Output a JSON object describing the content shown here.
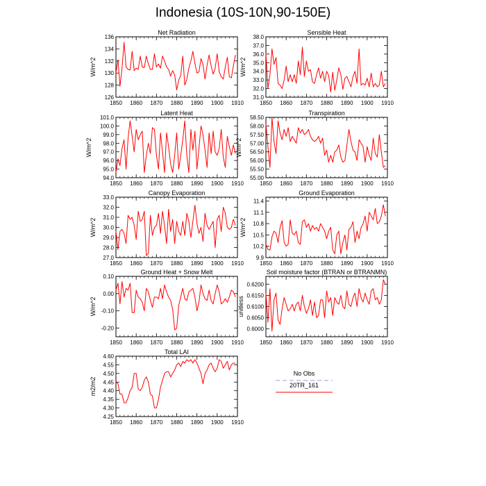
{
  "figure": {
    "title": "Indonesia (10S-10N,90-150E)"
  },
  "chart_data": [
    {
      "type": "line",
      "title": "Net Radiation",
      "ylabel": "W/m^2",
      "xlim": [
        1850,
        1910
      ],
      "ylim": [
        126,
        136
      ],
      "xticks": [
        1850,
        1860,
        1870,
        1880,
        1890,
        1900,
        1910
      ],
      "yticks": [
        126,
        128,
        130,
        132,
        134,
        136
      ],
      "ytick_labels": [
        "126",
        "128",
        "130",
        "132",
        "134",
        "136"
      ],
      "series": [
        {
          "name": "20TR_161",
          "color": "#ff0000",
          "x_start": 1850,
          "values": [
            130.0,
            132.2,
            127.8,
            130.8,
            135.1,
            131.0,
            130.6,
            130.5,
            133.6,
            130.4,
            130.8,
            130.6,
            132.8,
            131.0,
            130.9,
            132.8,
            131.5,
            130.6,
            130.6,
            133.2,
            131.0,
            131.5,
            130.8,
            132.8,
            132.0,
            131.0,
            130.6,
            129.5,
            130.4,
            129.7,
            127.2,
            128.8,
            129.6,
            132.8,
            128.0,
            129.0,
            130.8,
            132.0,
            133.6,
            131.6,
            130.0,
            130.2,
            132.4,
            131.4,
            129.0,
            131.3,
            133.0,
            131.2,
            129.8,
            130.8,
            133.2,
            130.2,
            129.4,
            129.0,
            131.0,
            132.6,
            129.4,
            129.2,
            131.2,
            133.0
          ]
        }
      ]
    },
    {
      "type": "line",
      "title": "Sensible Heat",
      "ylabel": "W/m^2",
      "xlim": [
        1850,
        1910
      ],
      "ylim": [
        31,
        38
      ],
      "xticks": [
        1850,
        1860,
        1870,
        1880,
        1890,
        1900,
        1910
      ],
      "yticks": [
        31,
        32,
        33,
        34,
        35,
        36,
        37,
        38
      ],
      "ytick_labels": [
        "31.0",
        "32.0",
        "33.0",
        "34.0",
        "35.0",
        "36.0",
        "37.0",
        "38.0"
      ],
      "series": [
        {
          "name": "20TR_161",
          "color": "#ff0000",
          "x_start": 1850,
          "values": [
            36.1,
            32.0,
            33.6,
            36.6,
            34.8,
            35.6,
            32.6,
            32.4,
            32.0,
            33.0,
            34.6,
            32.8,
            33.6,
            32.8,
            33.6,
            32.6,
            35.2,
            33.6,
            36.8,
            33.4,
            35.2,
            34.0,
            34.2,
            32.8,
            32.6,
            33.6,
            34.4,
            33.2,
            34.0,
            32.8,
            34.0,
            33.5,
            31.6,
            33.9,
            31.8,
            33.0,
            34.4,
            33.6,
            31.9,
            33.2,
            33.4,
            32.8,
            32.2,
            33.4,
            34.0,
            32.6,
            36.6,
            32.4,
            32.6,
            32.4,
            33.2,
            32.2,
            33.8,
            32.2,
            32.6,
            32.2,
            32.4,
            34.0,
            32.2,
            32.6
          ]
        }
      ]
    },
    {
      "type": "line",
      "title": "Latent Heat",
      "ylabel": "W/m^2",
      "xlim": [
        1850,
        1910
      ],
      "ylim": [
        94,
        101
      ],
      "xticks": [
        1850,
        1860,
        1870,
        1880,
        1890,
        1900,
        1910
      ],
      "yticks": [
        94,
        95,
        96,
        97,
        98,
        99,
        100,
        101
      ],
      "ytick_labels": [
        "94.0",
        "95.0",
        "96.0",
        "97.0",
        "98.0",
        "99.0",
        "100.0",
        "101.0"
      ],
      "series": [
        {
          "name": "20TR_161",
          "color": "#ff0000",
          "x_start": 1850,
          "values": [
            94.6,
            96.2,
            95.4,
            97.4,
            98.4,
            95.0,
            98.6,
            100.6,
            98.8,
            97.0,
            99.6,
            98.4,
            99.0,
            99.4,
            94.6,
            96.6,
            98.0,
            96.8,
            99.8,
            99.6,
            96.6,
            95.0,
            99.2,
            97.0,
            94.6,
            99.2,
            97.6,
            95.6,
            94.6,
            96.6,
            99.2,
            95.0,
            96.6,
            98.4,
            100.6,
            96.6,
            94.6,
            99.6,
            97.2,
            99.4,
            95.0,
            97.4,
            100.0,
            99.0,
            97.2,
            95.2,
            99.2,
            96.8,
            99.4,
            97.0,
            96.6,
            97.4,
            99.6,
            96.4,
            95.2,
            98.8,
            97.6,
            96.6,
            97.8,
            96.8
          ]
        }
      ]
    },
    {
      "type": "line",
      "title": "Transpiration",
      "ylabel": "W/m^2",
      "xlim": [
        1850,
        1910
      ],
      "ylim": [
        55,
        58.5
      ],
      "xticks": [
        1850,
        1860,
        1870,
        1880,
        1890,
        1900,
        1910
      ],
      "yticks": [
        55,
        55.5,
        56,
        56.5,
        57,
        57.5,
        58,
        58.5
      ],
      "ytick_labels": [
        "55.00",
        "55.50",
        "56.00",
        "56.50",
        "57.00",
        "57.50",
        "58.00",
        "58.50"
      ],
      "series": [
        {
          "name": "20TR_161",
          "color": "#ff0000",
          "x_start": 1850,
          "values": [
            58.1,
            56.8,
            55.6,
            58.5,
            57.1,
            56.4,
            58.3,
            57.6,
            57.2,
            57.8,
            57.4,
            57.9,
            57.1,
            57.4,
            57.2,
            57.0,
            57.9,
            57.6,
            57.8,
            57.5,
            57.6,
            57.8,
            57.4,
            57.2,
            57.1,
            57.2,
            57.4,
            57.0,
            57.3,
            56.3,
            56.6,
            55.9,
            56.3,
            55.9,
            56.5,
            56.6,
            56.9,
            56.2,
            55.9,
            56.0,
            56.9,
            57.8,
            57.1,
            56.6,
            56.5,
            56.0,
            57.2,
            57.0,
            56.8,
            55.9,
            56.8,
            56.3,
            56.0,
            57.3,
            56.4,
            56.2,
            57.5,
            56.5,
            55.6,
            55.7
          ]
        }
      ]
    },
    {
      "type": "line",
      "title": "Canopy Evaporation",
      "ylabel": "W/m^2",
      "xlim": [
        1850,
        1910
      ],
      "ylim": [
        27,
        33
      ],
      "xticks": [
        1850,
        1860,
        1870,
        1880,
        1890,
        1900,
        1910
      ],
      "yticks": [
        27,
        28,
        29,
        30,
        31,
        32,
        33
      ],
      "ytick_labels": [
        "27.0",
        "28.0",
        "29.0",
        "30.0",
        "31.0",
        "32.0",
        "33.0"
      ],
      "series": [
        {
          "name": "20TR_161",
          "color": "#ff0000",
          "x_start": 1850,
          "values": [
            29.6,
            27.8,
            29.6,
            29.8,
            29.4,
            28.4,
            31.2,
            30.8,
            31.0,
            30.2,
            28.8,
            31.6,
            30.6,
            30.8,
            31.6,
            27.2,
            27.4,
            31.2,
            29.2,
            30.0,
            30.2,
            31.4,
            29.4,
            31.6,
            30.2,
            28.4,
            31.8,
            29.6,
            30.8,
            28.4,
            30.6,
            29.6,
            29.2,
            30.6,
            29.2,
            31.4,
            30.6,
            29.0,
            30.6,
            32.2,
            30.4,
            29.4,
            30.0,
            28.6,
            31.4,
            30.2,
            29.8,
            30.2,
            30.6,
            28.0,
            30.8,
            31.2,
            29.6,
            32.0,
            31.4,
            30.0,
            29.8,
            30.0,
            30.8,
            30.2
          ]
        }
      ]
    },
    {
      "type": "line",
      "title": "Ground Evaporation",
      "ylabel": "W/m^2",
      "xlim": [
        1850,
        1910
      ],
      "ylim": [
        9.9,
        11.5
      ],
      "xticks": [
        1850,
        1860,
        1870,
        1880,
        1890,
        1900,
        1910
      ],
      "yticks": [
        9.9,
        10.2,
        10.5,
        10.8,
        11.1,
        11.4
      ],
      "ytick_labels": [
        "9.9",
        "10.2",
        "10.5",
        "10.8",
        "11.1",
        "11.4"
      ],
      "series": [
        {
          "name": "20TR_161",
          "color": "#ff0000",
          "x_start": 1850,
          "values": [
            10.25,
            10.12,
            10.1,
            10.45,
            10.6,
            10.55,
            10.3,
            10.7,
            10.88,
            10.3,
            10.2,
            10.25,
            10.9,
            10.55,
            10.5,
            10.6,
            10.3,
            10.25,
            10.85,
            10.9,
            10.7,
            10.8,
            10.6,
            10.75,
            10.65,
            10.7,
            10.6,
            10.8,
            10.7,
            10.6,
            10.4,
            10.6,
            10.7,
            10.1,
            10.0,
            10.5,
            10.6,
            10.0,
            10.3,
            10.5,
            10.1,
            10.65,
            10.7,
            10.85,
            10.3,
            10.6,
            10.4,
            10.7,
            10.8,
            11.0,
            10.6,
            11.1,
            11.0,
            10.9,
            11.2,
            10.8,
            10.85,
            11.0,
            11.3,
            11.0
          ]
        }
      ]
    },
    {
      "type": "line",
      "title": "Ground Heat + Snow Melt",
      "ylabel": "W/m^2",
      "xlim": [
        1850,
        1910
      ],
      "ylim": [
        -0.25,
        0.1
      ],
      "xticks": [
        1850,
        1860,
        1870,
        1880,
        1890,
        1900,
        1910
      ],
      "yticks": [
        -0.2,
        -0.1,
        0.0,
        0.1
      ],
      "ytick_labels": [
        "-0.20",
        "-0.10",
        "0.00",
        "0.10"
      ],
      "series": [
        {
          "name": "20TR_161",
          "color": "#ff0000",
          "x_start": 1850,
          "values": [
            0.02,
            0.06,
            -0.06,
            0.07,
            -0.02,
            0.03,
            0.02,
            0.06,
            -0.11,
            -0.11,
            0.02,
            -0.02,
            -0.03,
            -0.05,
            -0.1,
            0.03,
            0.01,
            -0.04,
            -0.08,
            -0.02,
            -0.02,
            -0.03,
            0.03,
            -0.03,
            0.05,
            0.01,
            -0.02,
            -0.04,
            -0.09,
            -0.21,
            -0.2,
            -0.07,
            -0.02,
            0.03,
            -0.03,
            -0.04,
            0.01,
            0.02,
            0.03,
            -0.02,
            -0.1,
            -0.05,
            0.05,
            0.0,
            -0.03,
            -0.04,
            0.02,
            -0.04,
            -0.06,
            0.0,
            0.05,
            0.01,
            -0.06,
            -0.05,
            -0.03,
            -0.05,
            -0.02,
            0.02,
            0.01,
            -0.02
          ]
        }
      ]
    },
    {
      "type": "line",
      "title": "Soil moisture factor (BTRAN or BTRANMN)",
      "ylabel": "unitless",
      "xlim": [
        1850,
        1910
      ],
      "ylim": [
        0.5965,
        0.6235
      ],
      "xticks": [
        1850,
        1860,
        1870,
        1880,
        1890,
        1900,
        1910
      ],
      "yticks": [
        0.6,
        0.605,
        0.61,
        0.615,
        0.62
      ],
      "ytick_labels": [
        "0.6000",
        "0.6050",
        "0.6100",
        "0.6150",
        "0.6200"
      ],
      "series": [
        {
          "name": "20TR_161",
          "color": "#ff0000",
          "x_start": 1850,
          "values": [
            0.616,
            0.603,
            0.618,
            0.599,
            0.613,
            0.616,
            0.604,
            0.602,
            0.609,
            0.614,
            0.611,
            0.608,
            0.609,
            0.611,
            0.608,
            0.611,
            0.612,
            0.608,
            0.615,
            0.61,
            0.607,
            0.609,
            0.613,
            0.606,
            0.612,
            0.605,
            0.606,
            0.613,
            0.613,
            0.605,
            0.617,
            0.612,
            0.614,
            0.606,
            0.614,
            0.612,
            0.611,
            0.615,
            0.61,
            0.609,
            0.617,
            0.611,
            0.61,
            0.614,
            0.616,
            0.61,
            0.618,
            0.614,
            0.612,
            0.616,
            0.613,
            0.611,
            0.617,
            0.618,
            0.613,
            0.614,
            0.611,
            0.613,
            0.622,
            0.62
          ]
        }
      ]
    },
    {
      "type": "line",
      "title": "Total LAI",
      "ylabel": "m2/m2",
      "xlim": [
        1850,
        1910
      ],
      "ylim": [
        4.25,
        4.6
      ],
      "xticks": [
        1850,
        1860,
        1870,
        1880,
        1890,
        1900,
        1910
      ],
      "yticks": [
        4.25,
        4.3,
        4.35,
        4.4,
        4.45,
        4.5,
        4.55,
        4.6
      ],
      "ytick_labels": [
        "4.25",
        "4.30",
        "4.35",
        "4.40",
        "4.45",
        "4.50",
        "4.55",
        "4.60"
      ],
      "series": [
        {
          "name": "20TR_161",
          "color": "#ff0000",
          "x_start": 1850,
          "values": [
            4.45,
            4.44,
            4.38,
            4.38,
            4.33,
            4.33,
            4.36,
            4.4,
            4.42,
            4.5,
            4.5,
            4.41,
            4.4,
            4.42,
            4.46,
            4.48,
            4.45,
            4.38,
            4.37,
            4.3,
            4.3,
            4.35,
            4.42,
            4.46,
            4.5,
            4.51,
            4.51,
            4.48,
            4.5,
            4.52,
            4.55,
            4.56,
            4.54,
            4.57,
            4.56,
            4.58,
            4.57,
            4.58,
            4.56,
            4.58,
            4.56,
            4.53,
            4.5,
            4.44,
            4.5,
            4.52,
            4.55,
            4.56,
            4.53,
            4.51,
            4.53,
            4.58,
            4.57,
            4.53,
            4.55,
            4.57,
            4.52,
            4.55,
            4.56,
            4.56
          ]
        }
      ]
    }
  ],
  "legend": {
    "items": [
      {
        "label": "No Obs",
        "color": "#9999dd",
        "style": "dashed"
      },
      {
        "label": "20TR_161",
        "color": "#ff0000",
        "style": "solid"
      }
    ]
  }
}
